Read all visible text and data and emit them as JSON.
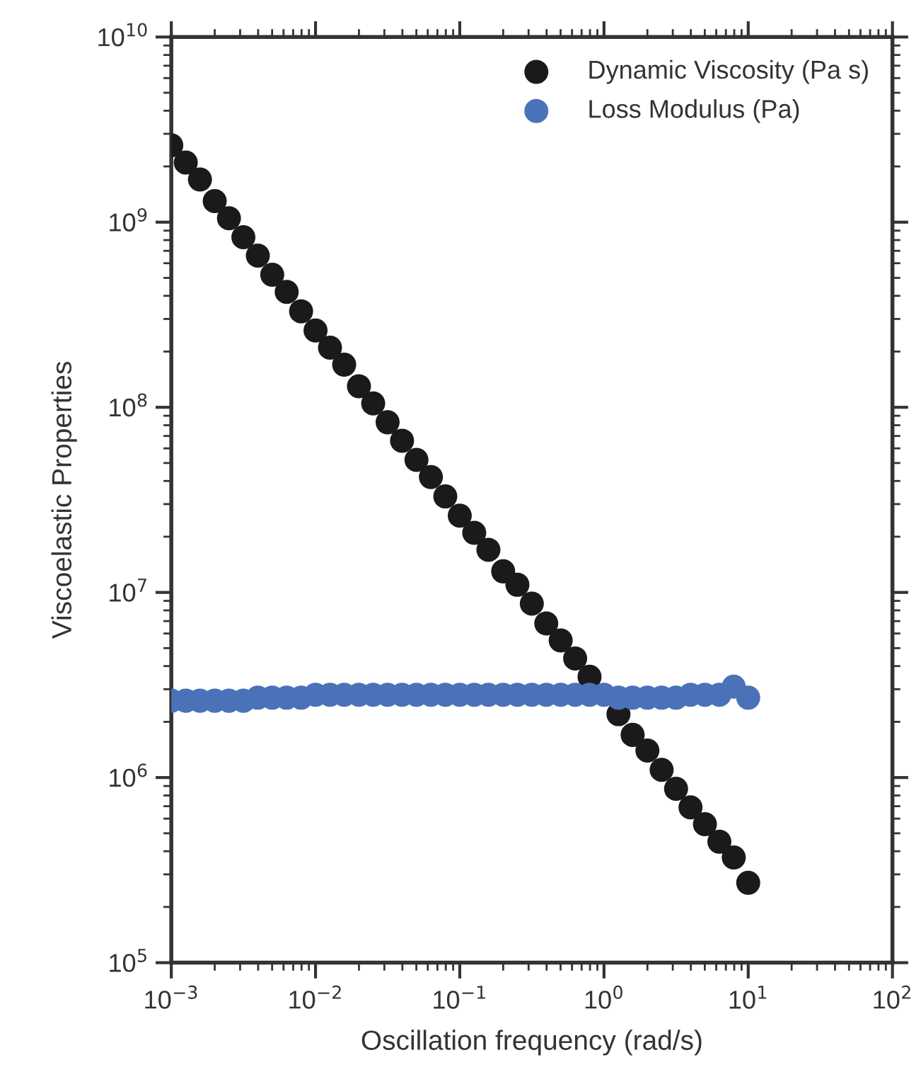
{
  "chart_data": {
    "type": "scatter",
    "xlabel": "Oscillation frequency (rad/s)",
    "ylabel": "Viscoelastic Properties",
    "log": "xy",
    "marker": "circle",
    "legend": "top right",
    "grid": false,
    "x": [
      0.001,
      0.00126,
      0.00158,
      0.002,
      0.00251,
      0.00316,
      0.00398,
      0.00501,
      0.00631,
      0.00794,
      0.01,
      0.0126,
      0.0158,
      0.02,
      0.0251,
      0.0316,
      0.0398,
      0.0501,
      0.0631,
      0.0794,
      0.1,
      0.126,
      0.158,
      0.2,
      0.251,
      0.316,
      0.398,
      0.501,
      0.631,
      0.794,
      1,
      1.26,
      1.58,
      2,
      2.51,
      3.16,
      3.98,
      5.01,
      6.31,
      7.94,
      10
    ],
    "xlim": [
      0.001,
      100
    ],
    "ylim": [
      100000,
      10000000000
    ],
    "xticks": [
      {
        "value": 0.001,
        "label": "10$^{−3}$"
      },
      {
        "value": 0.01,
        "label": "10$^{−2}$"
      },
      {
        "value": 0.1,
        "label": "10$^{−1}$"
      },
      {
        "value": 1,
        "label": "10$^{0}$"
      },
      {
        "value": 10,
        "label": "10$^{1}$"
      },
      {
        "value": 100,
        "label": "10$^{2}$"
      }
    ],
    "yticks": [
      {
        "value": 100000,
        "label": "10$^{5}$"
      },
      {
        "value": 1000000,
        "label": "10$^{6}$"
      },
      {
        "value": 10000000,
        "label": "10$^{7}$"
      },
      {
        "value": 100000000,
        "label": "10$^{8}$"
      },
      {
        "value": 1000000000,
        "label": "10$^{9}$"
      },
      {
        "value": 10000000000,
        "label": "10$^{10}$"
      }
    ],
    "series": [
      {
        "name": "Dynamic Viscosity (Pa s)",
        "color": "#1a1a1a",
        "values": [
          2600000000.0,
          2100000000.0,
          1700000000.0,
          1300000000.0,
          1050000000.0,
          830000000.0,
          660000000.0,
          520000000.0,
          420000000.0,
          330000000.0,
          260000000.0,
          210000000.0,
          170000000.0,
          130000000.0,
          105000000.0,
          83000000.0,
          66000000.0,
          52000000.0,
          42000000.0,
          33000000.0,
          26000000.0,
          21000000.0,
          17000000.0,
          13000000.0,
          11000000.0,
          8700000.0,
          6800000.0,
          5500000.0,
          4400000.0,
          3500000.0,
          null,
          2200000.0,
          1700000.0,
          1400000.0,
          1100000.0,
          870000.0,
          690000.0,
          560000.0,
          450000.0,
          370000.0,
          270000.0
        ]
      },
      {
        "name": "Loss Modulus (Pa)",
        "color": "#4a72b8",
        "values": [
          2600000.0,
          2600000.0,
          2600000.0,
          2600000.0,
          2600000.0,
          2600000.0,
          2700000.0,
          2700000.0,
          2700000.0,
          2700000.0,
          2800000.0,
          2800000.0,
          2800000.0,
          2800000.0,
          2800000.0,
          2800000.0,
          2800000.0,
          2800000.0,
          2800000.0,
          2800000.0,
          2800000.0,
          2800000.0,
          2800000.0,
          2800000.0,
          2800000.0,
          2800000.0,
          2800000.0,
          2800000.0,
          2800000.0,
          2800000.0,
          2800000.0,
          2700000.0,
          2700000.0,
          2700000.0,
          2700000.0,
          2700000.0,
          2800000.0,
          2800000.0,
          2800000.0,
          3100000.0,
          2700000.0
        ]
      }
    ]
  }
}
